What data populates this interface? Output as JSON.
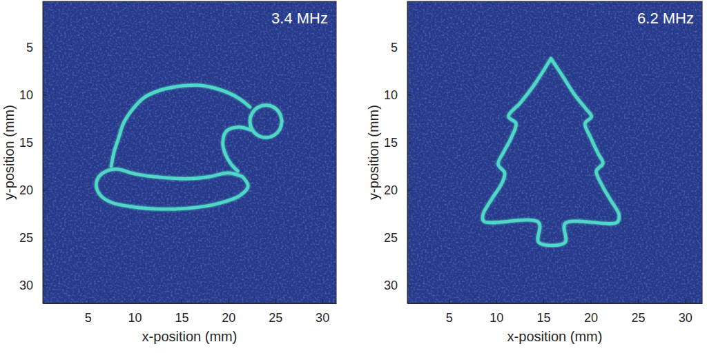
{
  "chart_data": [
    {
      "type": "line",
      "title": "3.4 MHz",
      "xlabel": "x-position (mm)",
      "ylabel": "y-position (mm)",
      "xlim": [
        0.2,
        31.5
      ],
      "ylim": [
        31.9,
        0.2
      ],
      "xticks": [
        5,
        10,
        15,
        20,
        25,
        30
      ],
      "yticks": [
        5,
        10,
        15,
        20,
        25,
        30
      ],
      "grid": false,
      "color": "#4fd8c6",
      "x": [
        7.5,
        7.8,
        8.3,
        8.8,
        9.8,
        11,
        12.8,
        14.8,
        16.7,
        18.5,
        20,
        21.3,
        22.3,
        null,
        25.7,
        25.47,
        24.85,
        24,
        23.15,
        22.53,
        22.3,
        22.53,
        23.15,
        24,
        24.85,
        25.47,
        25.7,
        null,
        22.4,
        21,
        19.8,
        19.4,
        19.7,
        20.3,
        21,
        null,
        21.5,
        20,
        18,
        16,
        13,
        10,
        8,
        6.5,
        5.9,
        6.3,
        7.5,
        10,
        13,
        16,
        19,
        21.2,
        22.1,
        21.5
      ],
      "values": [
        17.5,
        16,
        14.5,
        13,
        11.5,
        10.3,
        9.5,
        9.1,
        9,
        9.3,
        9.8,
        10.5,
        11.3,
        null,
        12.8,
        13.65,
        14.27,
        14.5,
        14.27,
        13.65,
        12.8,
        11.95,
        11.33,
        11.1,
        11.33,
        11.95,
        12.8,
        null,
        13.7,
        13.4,
        13.8,
        15,
        16.3,
        17.3,
        18,
        null,
        18.6,
        18.2,
        18.6,
        18.8,
        18.7,
        18.3,
        17.8,
        18.3,
        19.3,
        20.5,
        21.3,
        21.8,
        22,
        21.9,
        21.4,
        20.6,
        19.6,
        18.6
      ]
    },
    {
      "type": "line",
      "title": "6.2 MHz",
      "xlabel": "x-position (mm)",
      "ylabel": "y-position (mm)",
      "xlim": [
        0.6,
        31.8
      ],
      "ylim": [
        31.9,
        0.2
      ],
      "xticks": [
        5,
        10,
        15,
        20,
        25,
        30
      ],
      "yticks": [
        5,
        10,
        15,
        20,
        25,
        30
      ],
      "grid": false,
      "color": "#4fd8c6",
      "x": [
        15.8,
        17,
        18.3,
        19.6,
        20.1,
        19.4,
        20,
        20.8,
        21.3,
        20.6,
        21.2,
        22.2,
        23,
        22.8,
        17.3,
        17.3,
        14.5,
        14.5,
        8.7,
        8.6,
        9.5,
        10.6,
        10.9,
        10.2,
        10.8,
        11.6,
        12.1,
        11.3,
        12.6,
        14,
        15.8
      ],
      "values": [
        6.2,
        8,
        10,
        11.6,
        12.3,
        13,
        14.5,
        16.2,
        17.2,
        18,
        19.5,
        21.2,
        22.6,
        23.4,
        23.5,
        25.5,
        25.5,
        23.4,
        23.3,
        22.6,
        21,
        19.3,
        18.2,
        17.3,
        16,
        14.5,
        13,
        12.3,
        10.8,
        9,
        6.2
      ]
    }
  ]
}
